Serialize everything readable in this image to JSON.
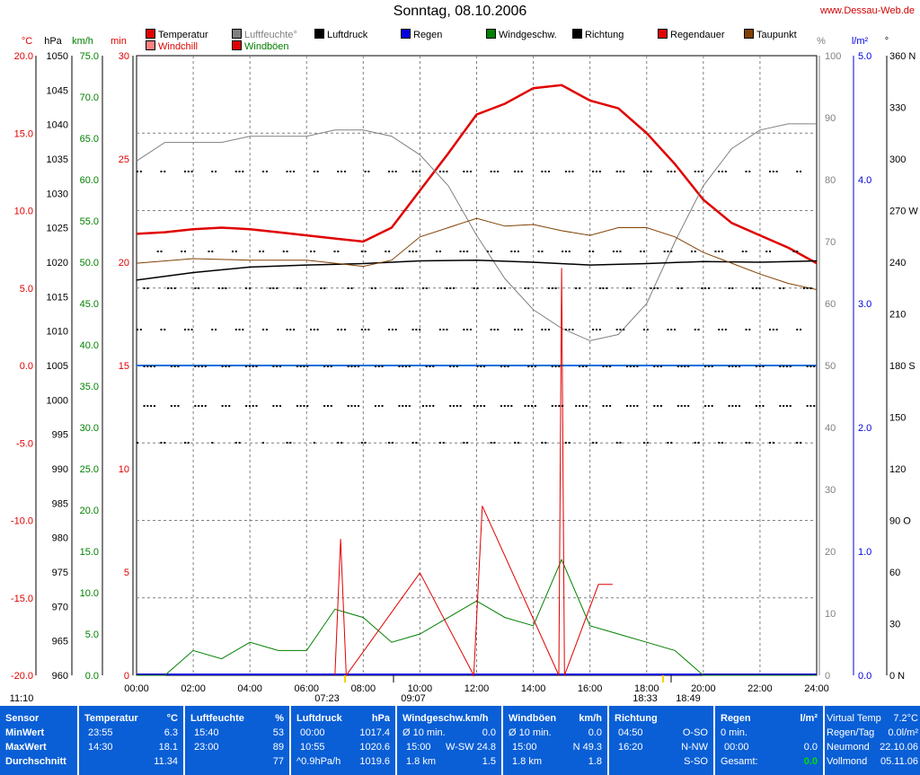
{
  "title": "Sonntag, 08.10.2006",
  "brand": "www.Dessau-Web.de",
  "legend": [
    {
      "label": "Temperatur",
      "color": "#e00000"
    },
    {
      "label": "Windchill",
      "color": "#ff8080"
    },
    {
      "label": "Luftfeuchte°",
      "color": "#808080"
    },
    {
      "label": "Windböen",
      "color": "#e00000"
    },
    {
      "label": "Luftdruck",
      "color": "#000000"
    },
    {
      "label": "Regen",
      "color": "#0000e0"
    },
    {
      "label": "Windgeschw.",
      "color": "#008000"
    },
    {
      "label": "Richtung",
      "color": "#000000"
    },
    {
      "label": "Regendauer",
      "color": "#e00000"
    },
    {
      "label": "Taupunkt",
      "color": "#804000"
    }
  ],
  "axes": {
    "units_left": [
      "°C",
      "hPa",
      "km/h",
      "min"
    ],
    "units_right": [
      "%",
      "l/m²",
      "°"
    ],
    "temp_ticks": [
      "20.0",
      "15.0",
      "10.0",
      "5.0",
      "0.0",
      "-5.0",
      "-10.0",
      "-15.0",
      "-20.0"
    ],
    "press_ticks": [
      "1050",
      "1045",
      "1040",
      "1035",
      "1030",
      "1025",
      "1020",
      "1015",
      "1010",
      "1005",
      "1000",
      "995",
      "990",
      "985",
      "980",
      "975",
      "970",
      "965",
      "960"
    ],
    "wind_ticks": [
      "75.0",
      "70.0",
      "65.0",
      "60.0",
      "55.0",
      "50.0",
      "45.0",
      "40.0",
      "35.0",
      "30.0",
      "25.0",
      "20.0",
      "15.0",
      "10.0",
      "5.0",
      "0.0"
    ],
    "min_ticks": [
      "30",
      "25",
      "20",
      "15",
      "10",
      "5",
      "0"
    ],
    "hum_ticks": [
      "100",
      "90",
      "80",
      "70",
      "60",
      "50",
      "40",
      "30",
      "20",
      "10",
      "0"
    ],
    "rain_ticks": [
      "5.0",
      "4.0",
      "3.0",
      "2.0",
      "1.0",
      "0.0"
    ],
    "dir_ticks": [
      "360 N",
      "330",
      "300",
      "270 W",
      "240",
      "210",
      "180 S",
      "150",
      "120",
      "90 O",
      "60",
      "30",
      "0 N"
    ],
    "x_ticks": [
      "00:00",
      "02:00",
      "04:00",
      "06:00",
      "08:00",
      "10:00",
      "12:00",
      "14:00",
      "16:00",
      "18:00",
      "20:00",
      "22:00",
      "24:00"
    ],
    "sun_moon": [
      "11:10",
      "07:23",
      "09:07",
      "18:33",
      "18:49"
    ]
  },
  "chart_data": {
    "type": "line",
    "x_unit": "hours",
    "series": [
      {
        "name": "Temperatur",
        "color": "#e00000",
        "x": [
          0,
          1,
          2,
          3,
          4,
          5,
          6,
          7,
          8,
          9,
          10,
          11,
          12,
          13,
          14,
          15,
          16,
          17,
          18,
          19,
          20,
          21,
          22,
          23,
          24
        ],
        "y": [
          8.5,
          8.6,
          8.8,
          8.9,
          8.8,
          8.6,
          8.4,
          8.2,
          8.0,
          8.9,
          11.3,
          13.7,
          16.2,
          16.9,
          17.9,
          18.1,
          17.1,
          16.6,
          15.0,
          13.0,
          10.7,
          9.2,
          8.4,
          7.6,
          6.6
        ]
      },
      {
        "name": "Luftfeuchte°",
        "color": "#808080",
        "x": [
          0,
          1,
          2,
          3,
          4,
          5,
          6,
          7,
          8,
          9,
          10,
          11,
          12,
          13,
          14,
          15,
          16,
          17,
          18,
          19,
          20,
          21,
          22,
          23,
          24
        ],
        "y": [
          83,
          86,
          86,
          86,
          87,
          87,
          87,
          88,
          88,
          87,
          84,
          79,
          71,
          64,
          59,
          56,
          54,
          55,
          60,
          70,
          79,
          85,
          88,
          89,
          89
        ]
      },
      {
        "name": "Luftdruck",
        "color": "#000000",
        "x": [
          0,
          2,
          4,
          6,
          8,
          10,
          12,
          14,
          16,
          18,
          20,
          22,
          24
        ],
        "y": [
          1017.4,
          1018.5,
          1019.3,
          1019.6,
          1019.8,
          1020.2,
          1020.3,
          1020.0,
          1019.6,
          1019.8,
          1020.1,
          1020.0,
          1020.2
        ]
      },
      {
        "name": "Taupunkt",
        "color": "#804000",
        "x": [
          0,
          2,
          4,
          6,
          8,
          9,
          10,
          11,
          12,
          13,
          14,
          15,
          16,
          17,
          18,
          19,
          20,
          21,
          22,
          23,
          24
        ],
        "y": [
          6.6,
          6.9,
          6.8,
          6.8,
          6.4,
          6.8,
          8.3,
          8.9,
          9.5,
          9.0,
          9.1,
          8.7,
          8.4,
          8.9,
          8.9,
          8.3,
          7.3,
          6.6,
          5.9,
          5.3,
          4.9
        ]
      },
      {
        "name": "Windgeschw.",
        "color": "#008000",
        "x": [
          0,
          1,
          2,
          3,
          4,
          5,
          6,
          7,
          8,
          9,
          10,
          11,
          12,
          13,
          14,
          15,
          16,
          17,
          18,
          19,
          20,
          21,
          22,
          23,
          24
        ],
        "y": [
          0,
          0,
          3,
          2,
          4,
          3,
          3,
          8,
          7,
          4,
          5,
          7,
          9,
          7,
          6,
          14,
          6,
          5,
          4,
          3,
          0,
          0,
          0,
          0,
          0
        ]
      },
      {
        "name": "Windböen",
        "color": "#e00000",
        "x": [
          7,
          7.2,
          7.4,
          10,
          11.9,
          12.2,
          14.9,
          15.0,
          15.1,
          16.3,
          16.8
        ],
        "y": [
          0,
          16.5,
          0,
          12.4,
          0,
          20.5,
          0,
          49.3,
          0,
          11.0,
          11.0
        ]
      }
    ],
    "ylim_temp": [
      -20,
      20
    ],
    "ylim_press": [
      960,
      1050
    ],
    "ylim_wind": [
      0,
      75
    ],
    "ylim_hum": [
      0,
      100
    ]
  },
  "table": {
    "sensor": {
      "h": "Sensor",
      "rows": [
        "MinWert",
        "MaxWert",
        "Durchschnitt"
      ]
    },
    "temp": {
      "h": "Temperatur",
      "u": "°C",
      "rows": [
        [
          "23:55",
          "6.3"
        ],
        [
          "14:30",
          "18.1"
        ],
        [
          "",
          "11.34"
        ]
      ]
    },
    "hum": {
      "h": "Luftfeuchte",
      "u": "%",
      "rows": [
        [
          "15:40",
          "53"
        ],
        [
          "23:00",
          "89"
        ],
        [
          "",
          "77"
        ]
      ]
    },
    "press": {
      "h": "Luftdruck",
      "u": "hPa",
      "rows": [
        [
          "00:00",
          "1017.4"
        ],
        [
          "10:55",
          "1020.6"
        ],
        [
          "^0.9hPa/h",
          "1019.6"
        ]
      ]
    },
    "wind": {
      "h": "Windgeschw.km/h",
      "rows": [
        [
          "Ø 10 min.",
          "0.0"
        ],
        [
          "15:00",
          "W-SW 24.8"
        ],
        [
          "1.8 km",
          "1.5"
        ]
      ]
    },
    "gust": {
      "h": "Windböen",
      "u": "km/h",
      "rows": [
        [
          "Ø 10 min.",
          "0.0"
        ],
        [
          "15:00",
          "N 49.3"
        ],
        [
          "1.8 km",
          "1.8"
        ]
      ]
    },
    "dir": {
      "h": "Richtung",
      "rows": [
        [
          "04:50",
          "O-SO"
        ],
        [
          "16:20",
          "N-NW"
        ],
        [
          "",
          "S-SO"
        ]
      ]
    },
    "rain": {
      "h": "Regen",
      "u": "l/m²",
      "rows": [
        [
          "0 min.",
          ""
        ],
        [
          "00:00",
          "0.0"
        ],
        [
          "Gesamt:",
          "0.0"
        ]
      ]
    },
    "side": {
      "rows": [
        [
          "Virtual Temp",
          "7.2°C"
        ],
        [
          "Regen/Tag",
          "0.0l/m²"
        ],
        [
          "Neumond",
          "22.10.06"
        ],
        [
          "Vollmond",
          "05.11.06"
        ]
      ]
    }
  }
}
